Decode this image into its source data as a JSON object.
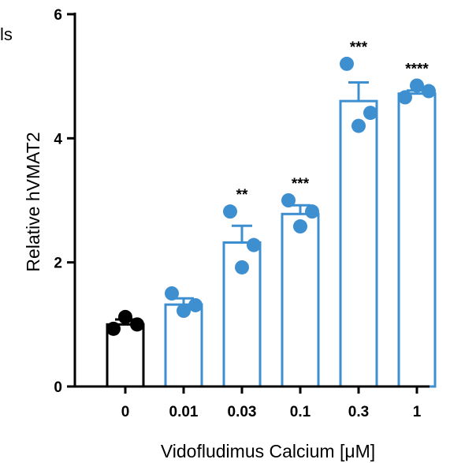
{
  "corner_fragment": "ls",
  "colors": {
    "control": "#000000",
    "treated": "#3d8fd0",
    "axis": "#000000",
    "background": "#ffffff"
  },
  "chart_data": {
    "type": "bar",
    "title": "",
    "xlabel": "Vidofludimus Calcium [μM]",
    "ylabel": "Relative hVMAT2",
    "ylim": [
      0,
      6
    ],
    "yticks": [
      0,
      2,
      4,
      6
    ],
    "categories": [
      "0",
      "0.01",
      "0.03",
      "0.1",
      "0.3",
      "1"
    ],
    "values": [
      1.0,
      1.32,
      2.32,
      2.78,
      4.6,
      4.72
    ],
    "error": [
      0.08,
      0.1,
      0.27,
      0.14,
      0.3,
      0.05
    ],
    "points": [
      [
        0.93,
        1.12,
        1.0
      ],
      [
        1.5,
        1.22,
        1.31
      ],
      [
        2.82,
        1.92,
        2.28
      ],
      [
        3.0,
        2.58,
        2.82
      ],
      [
        5.2,
        4.2,
        4.41
      ],
      [
        4.66,
        4.85,
        4.76
      ]
    ],
    "significance": [
      "",
      "",
      "**",
      "***",
      "***",
      "****"
    ],
    "bar_colors": [
      "#000000",
      "#3d8fd0",
      "#3d8fd0",
      "#3d8fd0",
      "#3d8fd0",
      "#3d8fd0"
    ],
    "grid": false,
    "legend": "none"
  }
}
